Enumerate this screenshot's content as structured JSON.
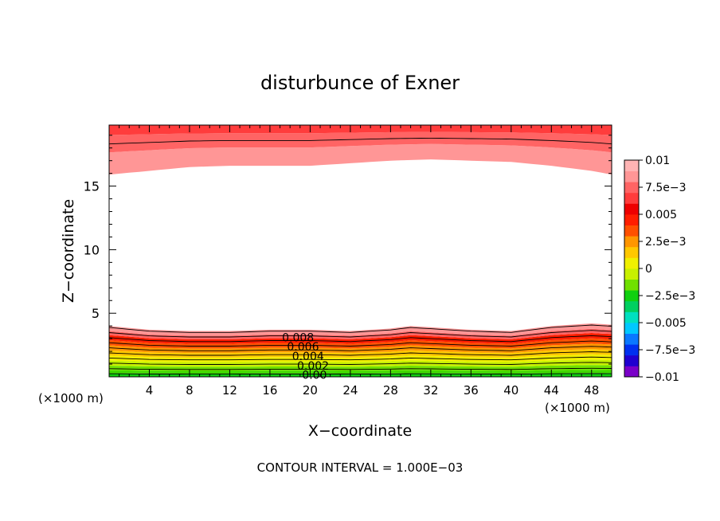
{
  "chart_data": {
    "type": "heatmap",
    "title": "disturbunce of Exner",
    "xlabel": "X−coordinate",
    "ylabel": "Z−coordinate",
    "x_unit": "(×1000 m)",
    "y_unit": "(×1000 m)",
    "xlim": [
      0,
      50
    ],
    "ylim": [
      0,
      19.8
    ],
    "x_ticks": [
      4,
      8,
      12,
      16,
      20,
      24,
      28,
      32,
      36,
      40,
      44,
      48
    ],
    "y_ticks": [
      5,
      10,
      15
    ],
    "x_tick_labels": [
      "4",
      "8",
      "12",
      "16",
      "20",
      "24",
      "28",
      "32",
      "36",
      "40",
      "44",
      "48"
    ],
    "y_tick_labels": [
      "5",
      "10",
      "15"
    ],
    "contour_interval": 0.001,
    "footnote": "CONTOUR INTERVAL = 1.000E−03",
    "contour_labels": [
      "0.008",
      "0.006",
      "0.004",
      "0.002",
      "0.00"
    ],
    "colorbar": {
      "min": -0.01,
      "max": 0.01,
      "tick_labels": [
        "0.01",
        "7.5e−3",
        "0.005",
        "2.5e−3",
        "0",
        "−2.5e−3",
        "−0.005",
        "−7.5e−3",
        "−0.01"
      ],
      "colors": [
        "#7a00c8",
        "#2000d0",
        "#0030f0",
        "#0a78ff",
        "#00c8ff",
        "#00e0c0",
        "#00d060",
        "#10d010",
        "#70e000",
        "#c8f000",
        "#f0f000",
        "#ffc800",
        "#ff9600",
        "#ff5000",
        "#ff1e00",
        "#ee0000",
        "#ff3c3c",
        "#ff6464",
        "#ff9696",
        "#ffb4b4"
      ]
    },
    "field": {
      "description_values": "Exner disturbance bands; positive near bottom (0.002-0.008) and top (0.008-0.01), ~0 in mid-levels",
      "bottom_profile_x": [
        0,
        4,
        8,
        12,
        16,
        20,
        24,
        28,
        30,
        32,
        36,
        40,
        44,
        48,
        50
      ],
      "bottom_top_km": [
        4.0,
        3.7,
        3.6,
        3.6,
        3.7,
        3.7,
        3.6,
        3.8,
        4.0,
        3.9,
        3.7,
        3.6,
        4.0,
        4.2,
        4.1
      ],
      "top_profile_x": [
        0,
        4,
        8,
        12,
        16,
        20,
        24,
        28,
        32,
        36,
        40,
        44,
        48,
        50
      ],
      "top_bottom_km": [
        15.9,
        16.2,
        16.5,
        16.6,
        16.6,
        16.6,
        16.8,
        17.0,
        17.1,
        17.0,
        16.9,
        16.6,
        16.2,
        15.9
      ]
    }
  }
}
